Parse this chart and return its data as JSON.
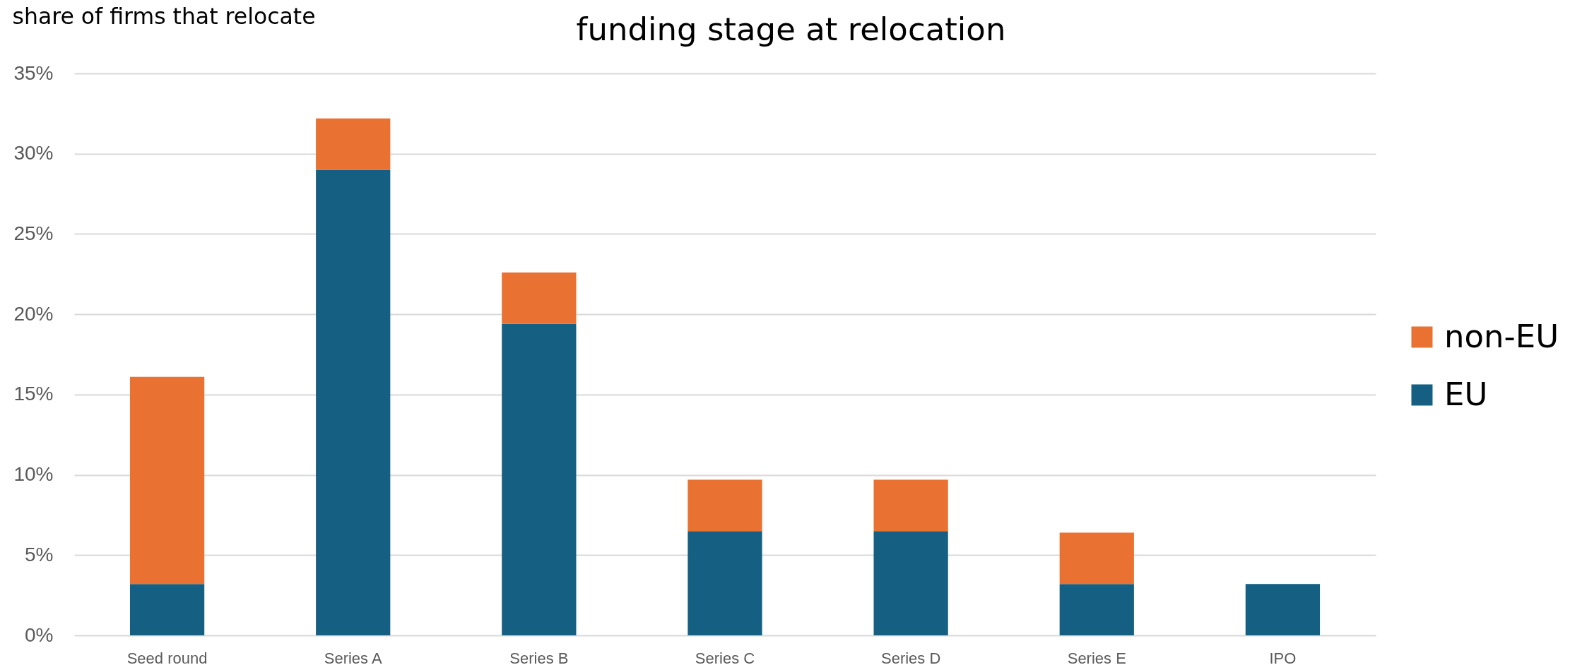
{
  "chart_data": {
    "type": "bar",
    "title": "funding stage at relocation",
    "ylabel": "share of firms that relocate",
    "categories": [
      "Seed round",
      "Series A",
      "Series B",
      "Series C",
      "Series D",
      "Series E",
      "IPO"
    ],
    "stacked": true,
    "series": [
      {
        "name": "EU",
        "color": "#156082",
        "values": [
          3.2,
          29.0,
          19.4,
          6.5,
          6.5,
          3.2,
          3.2
        ]
      },
      {
        "name": "non-EU",
        "color": "#e97132",
        "values": [
          12.9,
          3.2,
          3.2,
          3.2,
          3.2,
          3.2,
          null
        ]
      }
    ],
    "ylim": [
      0,
      35
    ],
    "yticks": [
      {
        "value": 0,
        "label": "0%"
      },
      {
        "value": 5,
        "label": "5%"
      },
      {
        "value": 10,
        "label": "10%"
      },
      {
        "value": 15,
        "label": "15%"
      },
      {
        "value": 20,
        "label": "20%"
      },
      {
        "value": 25,
        "label": "25%"
      },
      {
        "value": 30,
        "label": "30%"
      },
      {
        "value": 35,
        "label": "35%"
      }
    ],
    "grid": "y",
    "legend": "right"
  }
}
